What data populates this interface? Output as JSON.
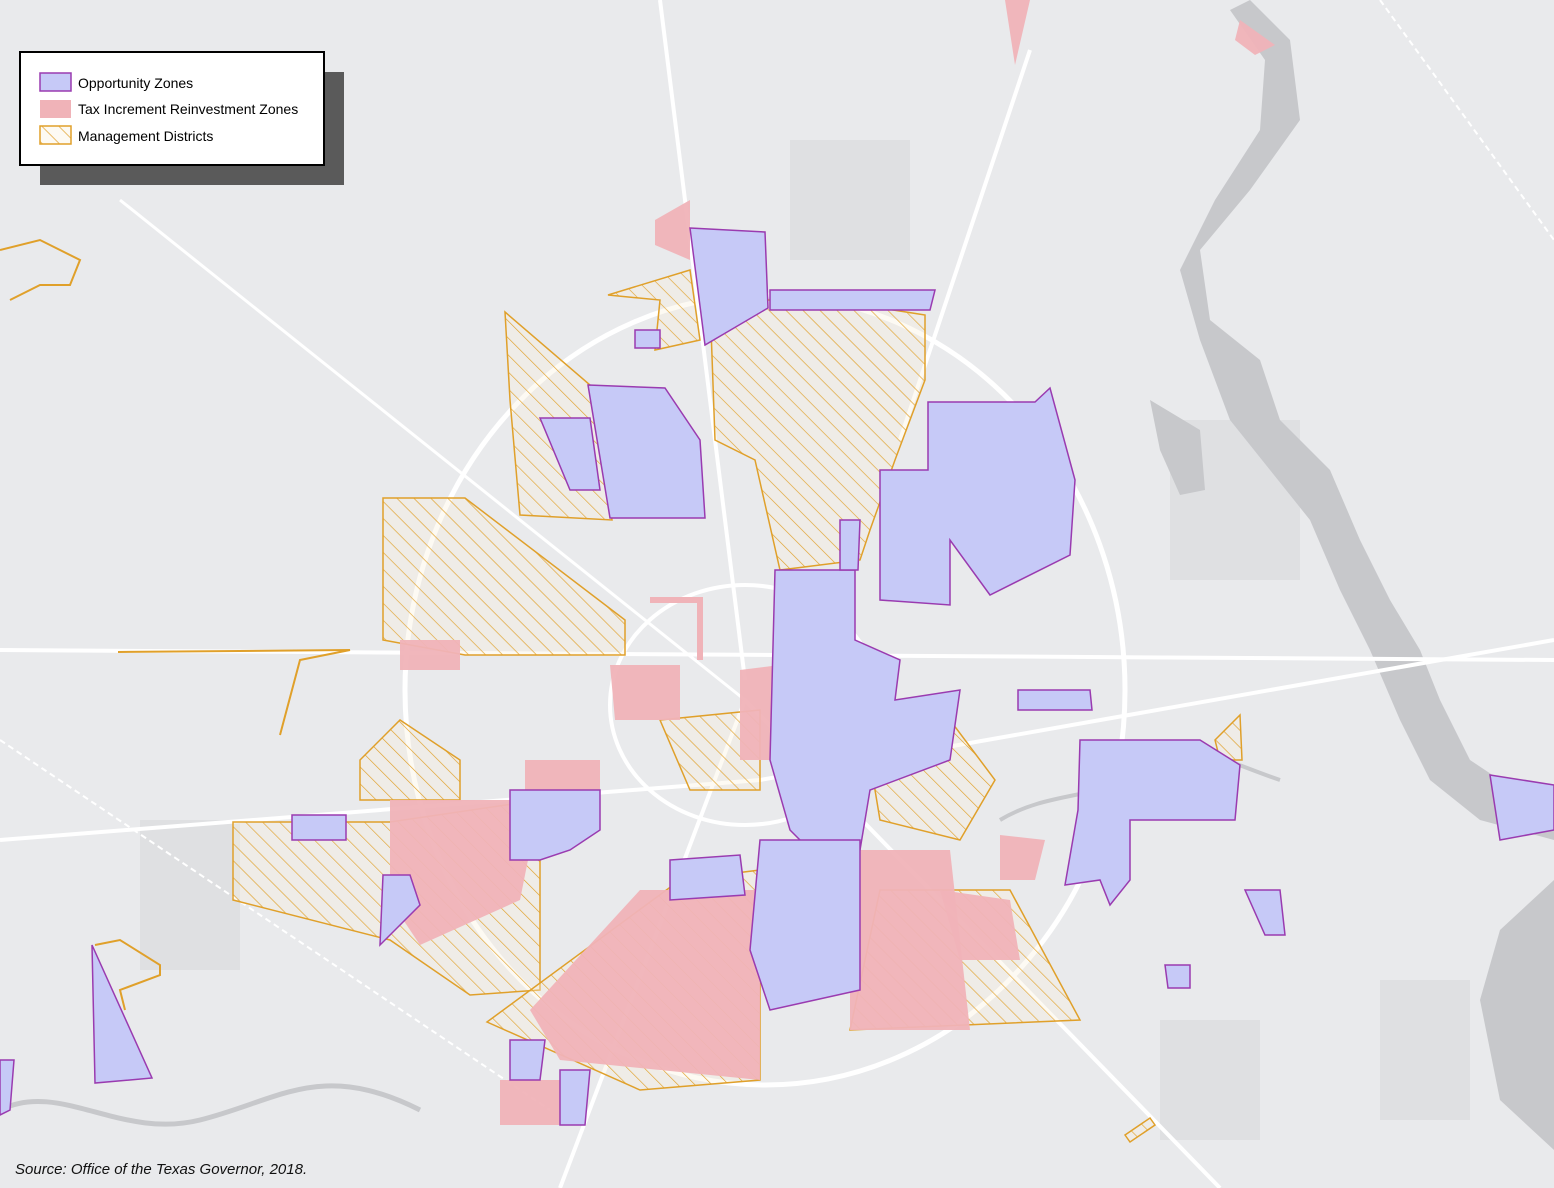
{
  "legend": {
    "items": [
      "Opportunity Zones",
      "Tax Increment Reinvestment Zones",
      "Management Districts"
    ]
  },
  "source": "Source: Office of the Texas Governor, 2018."
}
